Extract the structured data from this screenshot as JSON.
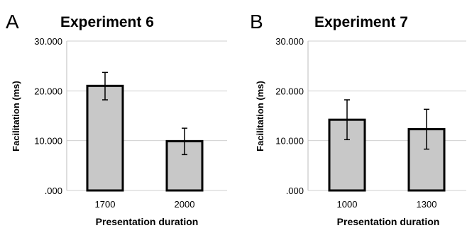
{
  "chart_data": [
    {
      "panel_letter": "A",
      "type": "bar",
      "title": "Experiment 6",
      "xlabel": "Presentation duration",
      "ylabel": "Facilitation (ms)",
      "ylim": [
        0,
        30
      ],
      "yticks": [
        0,
        10,
        20,
        30
      ],
      "ytick_labels": [
        ".000",
        "10.000",
        "20.000",
        "30.000"
      ],
      "grid": true,
      "categories": [
        "1700",
        "2000"
      ],
      "values": [
        21.0,
        9.9
      ],
      "error_low": [
        18.2,
        7.2
      ],
      "error_high": [
        23.7,
        12.5
      ],
      "bar_color": "#c8c8c8"
    },
    {
      "panel_letter": "B",
      "type": "bar",
      "title": "Experiment 7",
      "xlabel": "Presentation duration",
      "ylabel": "Facilitation (ms)",
      "ylim": [
        0,
        30
      ],
      "yticks": [
        0,
        10,
        20,
        30
      ],
      "ytick_labels": [
        ".000",
        "10.000",
        "20.000",
        "30.000"
      ],
      "grid": true,
      "categories": [
        "1000",
        "1300"
      ],
      "values": [
        14.2,
        12.3
      ],
      "error_low": [
        10.2,
        8.3
      ],
      "error_high": [
        18.2,
        16.3
      ],
      "bar_color": "#c8c8c8"
    }
  ]
}
